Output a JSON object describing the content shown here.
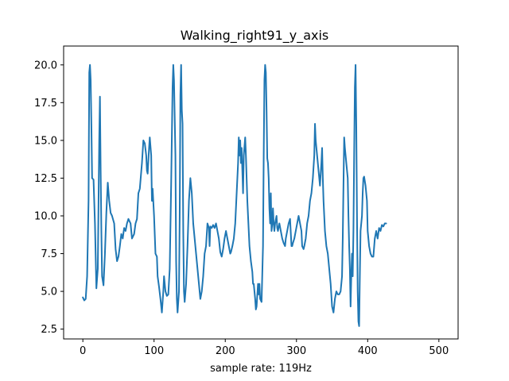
{
  "chart_data": {
    "type": "line",
    "title": "Walking_right91_y_axis",
    "xlabel": "sample rate: 119Hz",
    "ylabel": "",
    "xlim": [
      -27,
      527
    ],
    "ylim": [
      1.85,
      21.25
    ],
    "xticks": [
      0,
      100,
      200,
      300,
      400,
      500
    ],
    "yticks": [
      2.5,
      5.0,
      7.5,
      10.0,
      12.5,
      15.0,
      17.5,
      20.0
    ],
    "ytick_labels": [
      "2.5",
      "5.0",
      "7.5",
      "10.0",
      "12.5",
      "15.0",
      "17.5",
      "20.0"
    ],
    "grid": false,
    "series": [
      {
        "color": "#1f77b4",
        "points": [
          [
            0,
            4.6
          ],
          [
            2,
            4.4
          ],
          [
            4,
            4.5
          ],
          [
            6,
            6.0
          ],
          [
            8,
            11.0
          ],
          [
            9,
            19.5
          ],
          [
            10,
            20.0
          ],
          [
            11,
            19.0
          ],
          [
            12,
            16.0
          ],
          [
            13,
            12.5
          ],
          [
            15,
            12.4
          ],
          [
            17,
            9.5
          ],
          [
            19,
            5.2
          ],
          [
            21,
            6.5
          ],
          [
            23,
            15.0
          ],
          [
            24,
            17.9
          ],
          [
            25,
            13.0
          ],
          [
            26,
            9.0
          ],
          [
            27,
            6.0
          ],
          [
            29,
            5.4
          ],
          [
            31,
            7.5
          ],
          [
            33,
            10.2
          ],
          [
            35,
            12.2
          ],
          [
            37,
            11.0
          ],
          [
            39,
            10.2
          ],
          [
            41,
            10.0
          ],
          [
            44,
            9.5
          ],
          [
            46,
            7.8
          ],
          [
            48,
            7.0
          ],
          [
            50,
            7.3
          ],
          [
            52,
            8.0
          ],
          [
            54,
            8.8
          ],
          [
            56,
            8.5
          ],
          [
            58,
            9.2
          ],
          [
            60,
            9.0
          ],
          [
            62,
            9.5
          ],
          [
            64,
            9.8
          ],
          [
            67,
            9.5
          ],
          [
            69,
            8.5
          ],
          [
            72,
            8.8
          ],
          [
            74,
            9.5
          ],
          [
            76,
            9.8
          ],
          [
            78,
            11.5
          ],
          [
            80,
            11.8
          ],
          [
            83,
            13.5
          ],
          [
            85,
            15.0
          ],
          [
            87,
            14.8
          ],
          [
            89,
            14.0
          ],
          [
            90,
            13.0
          ],
          [
            91,
            12.8
          ],
          [
            93,
            14.5
          ],
          [
            94,
            15.2
          ],
          [
            96,
            14.0
          ],
          [
            97,
            11.0
          ],
          [
            98,
            11.8
          ],
          [
            100,
            10.0
          ],
          [
            102,
            7.5
          ],
          [
            104,
            7.3
          ],
          [
            105,
            6.0
          ],
          [
            107,
            5.3
          ],
          [
            109,
            4.5
          ],
          [
            111,
            3.6
          ],
          [
            113,
            5.0
          ],
          [
            114,
            6.0
          ],
          [
            116,
            5.0
          ],
          [
            118,
            4.7
          ],
          [
            120,
            4.8
          ],
          [
            122,
            6.5
          ],
          [
            124,
            12.0
          ],
          [
            126,
            18.5
          ],
          [
            127,
            20.0
          ],
          [
            128,
            19.0
          ],
          [
            130,
            14.0
          ],
          [
            131,
            7.0
          ],
          [
            132,
            4.5
          ],
          [
            133,
            3.6
          ],
          [
            135,
            5.0
          ],
          [
            136,
            10.0
          ],
          [
            137,
            18.0
          ],
          [
            138,
            20.0
          ],
          [
            139,
            17.0
          ],
          [
            140,
            16.1
          ],
          [
            141,
            9.0
          ],
          [
            142,
            5.0
          ],
          [
            143,
            4.3
          ],
          [
            145,
            5.5
          ],
          [
            147,
            8.0
          ],
          [
            149,
            11.0
          ],
          [
            151,
            12.5
          ],
          [
            153,
            11.5
          ],
          [
            155,
            9.5
          ],
          [
            157,
            8.5
          ],
          [
            159,
            7.5
          ],
          [
            161,
            6.5
          ],
          [
            163,
            5.5
          ],
          [
            165,
            4.5
          ],
          [
            167,
            5.0
          ],
          [
            169,
            6.0
          ],
          [
            171,
            7.5
          ],
          [
            173,
            8.0
          ],
          [
            175,
            9.5
          ],
          [
            177,
            9.2
          ],
          [
            178,
            8.0
          ],
          [
            179,
            9.3
          ],
          [
            181,
            9.2
          ],
          [
            183,
            9.4
          ],
          [
            185,
            9.2
          ],
          [
            187,
            9.5
          ],
          [
            189,
            9.0
          ],
          [
            191,
            8.5
          ],
          [
            193,
            7.6
          ],
          [
            195,
            7.3
          ],
          [
            197,
            7.8
          ],
          [
            199,
            8.5
          ],
          [
            201,
            9.0
          ],
          [
            203,
            8.5
          ],
          [
            205,
            8.0
          ],
          [
            207,
            7.5
          ],
          [
            208,
            7.6
          ],
          [
            210,
            8.0
          ],
          [
            212,
            8.5
          ],
          [
            214,
            9.5
          ],
          [
            216,
            11.5
          ],
          [
            218,
            13.5
          ],
          [
            219,
            15.2
          ],
          [
            220,
            14.0
          ],
          [
            221,
            15.0
          ],
          [
            222,
            13.5
          ],
          [
            223,
            14.5
          ],
          [
            225,
            11.5
          ],
          [
            226,
            14.0
          ],
          [
            228,
            15.2
          ],
          [
            229,
            14.0
          ],
          [
            230,
            12.5
          ],
          [
            231,
            11.0
          ],
          [
            232,
            10.0
          ],
          [
            234,
            8.0
          ],
          [
            236,
            7.0
          ],
          [
            238,
            6.3
          ],
          [
            239,
            5.5
          ],
          [
            240,
            5.5
          ],
          [
            242,
            4.5
          ],
          [
            243,
            3.8
          ],
          [
            244,
            4.0
          ],
          [
            246,
            5.5
          ],
          [
            247,
            4.8
          ],
          [
            248,
            5.5
          ],
          [
            249,
            4.5
          ],
          [
            251,
            4.3
          ],
          [
            253,
            8.0
          ],
          [
            254,
            14.0
          ],
          [
            255,
            19.0
          ],
          [
            256,
            20.0
          ],
          [
            257,
            19.5
          ],
          [
            258,
            17.0
          ],
          [
            259,
            13.8
          ],
          [
            260,
            13.5
          ],
          [
            261,
            12.5
          ],
          [
            262,
            10.5
          ],
          [
            263,
            9.5
          ],
          [
            264,
            11.5
          ],
          [
            265,
            9.0
          ],
          [
            266,
            9.5
          ],
          [
            267,
            10.5
          ],
          [
            268,
            9.5
          ],
          [
            269,
            9.0
          ],
          [
            270,
            9.5
          ],
          [
            272,
            10.0
          ],
          [
            273,
            9.2
          ],
          [
            274,
            9.0
          ],
          [
            276,
            9.5
          ],
          [
            278,
            9.0
          ],
          [
            280,
            8.5
          ],
          [
            282,
            8.2
          ],
          [
            284,
            8.0
          ],
          [
            285,
            8.5
          ],
          [
            287,
            9.0
          ],
          [
            289,
            9.5
          ],
          [
            291,
            9.8
          ],
          [
            293,
            8.0
          ],
          [
            294,
            8.0
          ],
          [
            295,
            8.2
          ],
          [
            297,
            8.5
          ],
          [
            299,
            9.0
          ],
          [
            301,
            9.5
          ],
          [
            303,
            10.0
          ],
          [
            305,
            9.5
          ],
          [
            307,
            9.0
          ],
          [
            308,
            8.0
          ],
          [
            310,
            7.8
          ],
          [
            311,
            8.0
          ],
          [
            313,
            8.5
          ],
          [
            315,
            9.5
          ],
          [
            317,
            10.0
          ],
          [
            319,
            11.0
          ],
          [
            321,
            11.5
          ],
          [
            323,
            12.5
          ],
          [
            325,
            14.0
          ],
          [
            326,
            16.1
          ],
          [
            327,
            15.0
          ],
          [
            329,
            14.0
          ],
          [
            331,
            13.0
          ],
          [
            332,
            12.5
          ],
          [
            333,
            12.0
          ],
          [
            335,
            13.5
          ],
          [
            336,
            14.5
          ],
          [
            337,
            12.5
          ],
          [
            338,
            11.0
          ],
          [
            339,
            10.0
          ],
          [
            340,
            9.0
          ],
          [
            342,
            8.0
          ],
          [
            344,
            7.5
          ],
          [
            346,
            6.5
          ],
          [
            348,
            5.5
          ],
          [
            350,
            4.0
          ],
          [
            352,
            3.6
          ],
          [
            354,
            4.5
          ],
          [
            356,
            5.0
          ],
          [
            358,
            4.8
          ],
          [
            360,
            4.8
          ],
          [
            362,
            5.0
          ],
          [
            364,
            6.0
          ],
          [
            365,
            8.5
          ],
          [
            366,
            12.0
          ],
          [
            367,
            15.2
          ],
          [
            368,
            14.5
          ],
          [
            370,
            13.5
          ],
          [
            372,
            12.5
          ],
          [
            373,
            10.0
          ],
          [
            374,
            8.0
          ],
          [
            375,
            6.5
          ],
          [
            376,
            4.0
          ],
          [
            377,
            6.0
          ],
          [
            378,
            7.5
          ],
          [
            379,
            6.0
          ],
          [
            380,
            9.0
          ],
          [
            381,
            14.0
          ],
          [
            382,
            18.5
          ],
          [
            383,
            20.0
          ],
          [
            384,
            16.0
          ],
          [
            385,
            10.0
          ],
          [
            386,
            5.0
          ],
          [
            387,
            3.0
          ],
          [
            388,
            2.7
          ],
          [
            389,
            6.0
          ],
          [
            390,
            9.0
          ],
          [
            392,
            10.0
          ],
          [
            393,
            11.5
          ],
          [
            394,
            12.5
          ],
          [
            395,
            12.6
          ],
          [
            397,
            12.0
          ],
          [
            399,
            11.0
          ],
          [
            400,
            9.0
          ],
          [
            402,
            8.0
          ],
          [
            404,
            7.5
          ],
          [
            406,
            7.3
          ],
          [
            408,
            7.3
          ],
          [
            410,
            8.5
          ],
          [
            412,
            9.0
          ],
          [
            414,
            8.5
          ],
          [
            416,
            9.2
          ],
          [
            418,
            9.0
          ],
          [
            420,
            9.4
          ],
          [
            422,
            9.3
          ],
          [
            424,
            9.5
          ],
          [
            426,
            9.5
          ]
        ]
      }
    ]
  }
}
